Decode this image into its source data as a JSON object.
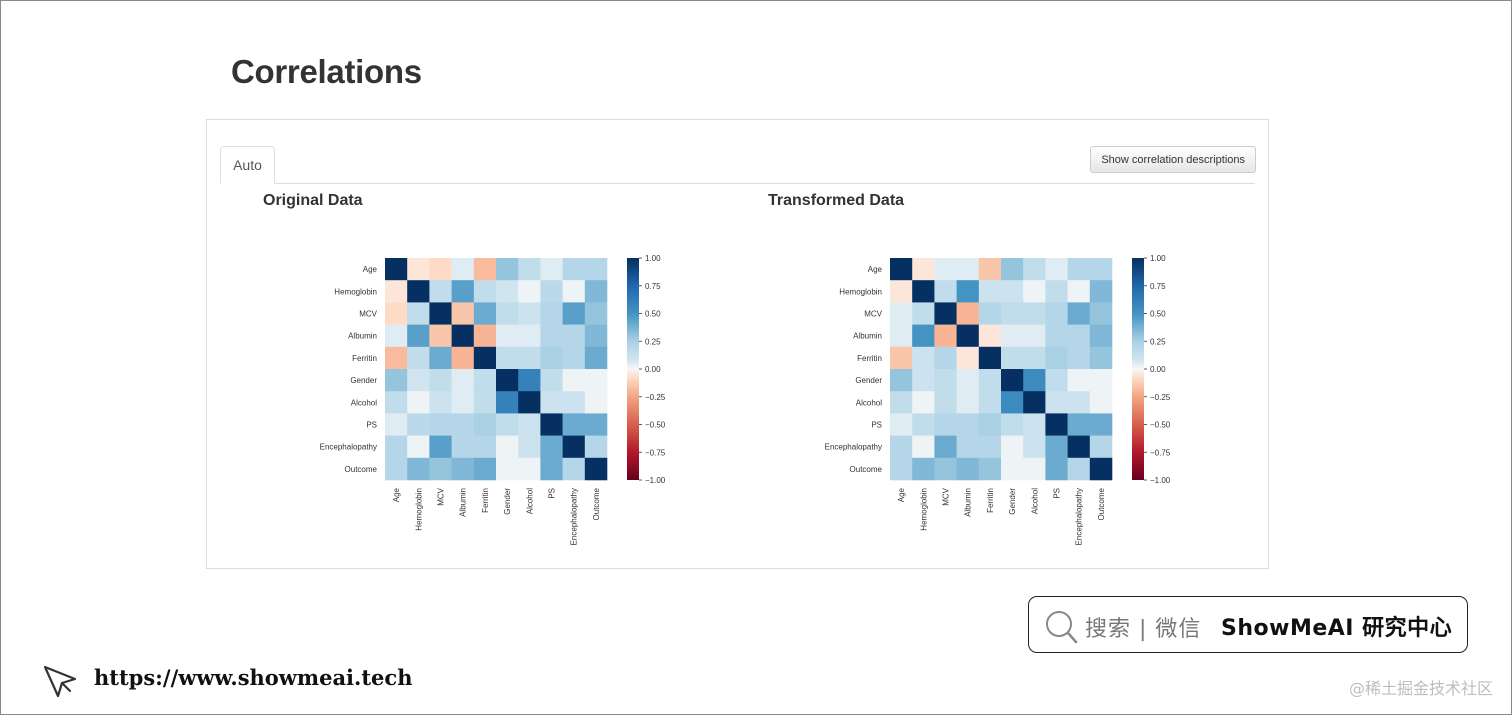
{
  "page": {
    "title": "Correlations"
  },
  "tabs": [
    {
      "label": "Auto",
      "active": true
    }
  ],
  "toolbar": {
    "show_descriptions_label": "Show correlation descriptions"
  },
  "footer": {
    "url": "https://www.showmeai.tech",
    "search_label": "搜索 | 微信",
    "brand": "ShowMeAI 研究中心",
    "watermark": "@稀土掘金技术社区"
  },
  "chart_data": [
    {
      "type": "heatmap",
      "title": "Original Data",
      "variables": [
        "Age",
        "Hemoglobin",
        "MCV",
        "Albumin",
        "Ferritin",
        "Gender",
        "Alcohol",
        "PS",
        "Encephalopathy",
        "Outcome"
      ],
      "vmin": -1,
      "vmax": 1,
      "colorbar_ticks": [
        "1.00",
        "0.75",
        "0.50",
        "0.25",
        "0.00",
        "−0.25",
        "−0.50",
        "−0.75",
        "−1.00"
      ],
      "matrix": [
        [
          1.0,
          -0.05,
          -0.08,
          0.05,
          -0.18,
          0.3,
          0.15,
          0.05,
          0.2,
          0.2
        ],
        [
          -0.05,
          1.0,
          0.15,
          0.45,
          0.15,
          0.08,
          0.02,
          0.18,
          0.02,
          0.35
        ],
        [
          -0.08,
          0.15,
          1.0,
          -0.15,
          0.4,
          0.15,
          0.1,
          0.2,
          0.45,
          0.3
        ],
        [
          0.05,
          0.45,
          -0.15,
          1.0,
          -0.2,
          0.05,
          0.05,
          0.2,
          0.2,
          0.35
        ],
        [
          -0.18,
          0.15,
          0.4,
          -0.2,
          1.0,
          0.15,
          0.15,
          0.25,
          0.2,
          0.4
        ],
        [
          0.3,
          0.08,
          0.15,
          0.05,
          0.15,
          1.0,
          0.6,
          0.15,
          0.02,
          0.02
        ],
        [
          0.15,
          0.02,
          0.1,
          0.05,
          0.15,
          0.6,
          1.0,
          0.1,
          0.1,
          0.02
        ],
        [
          0.05,
          0.18,
          0.2,
          0.2,
          0.25,
          0.15,
          0.1,
          1.0,
          0.4,
          0.4
        ],
        [
          0.2,
          0.02,
          0.45,
          0.2,
          0.2,
          0.02,
          0.1,
          0.4,
          1.0,
          0.2
        ],
        [
          0.2,
          0.35,
          0.3,
          0.35,
          0.4,
          0.02,
          0.02,
          0.4,
          0.2,
          1.0
        ]
      ]
    },
    {
      "type": "heatmap",
      "title": "Transformed Data",
      "variables": [
        "Age",
        "Hemoglobin",
        "MCV",
        "Albumin",
        "Ferritin",
        "Gender",
        "Alcohol",
        "PS",
        "Encephalopathy",
        "Outcome"
      ],
      "vmin": -1,
      "vmax": 1,
      "colorbar_ticks": [
        "1.00",
        "0.75",
        "0.50",
        "0.25",
        "0.00",
        "−0.25",
        "−0.50",
        "−0.75",
        "−1.00"
      ],
      "matrix": [
        [
          1.0,
          -0.05,
          0.05,
          0.05,
          -0.15,
          0.3,
          0.15,
          0.05,
          0.2,
          0.2
        ],
        [
          -0.05,
          1.0,
          0.15,
          0.5,
          0.1,
          0.1,
          0.02,
          0.15,
          0.02,
          0.35
        ],
        [
          0.05,
          0.15,
          1.0,
          -0.2,
          0.2,
          0.15,
          0.15,
          0.2,
          0.4,
          0.3
        ],
        [
          0.05,
          0.5,
          -0.2,
          1.0,
          -0.05,
          0.05,
          0.05,
          0.2,
          0.2,
          0.35
        ],
        [
          -0.15,
          0.1,
          0.2,
          -0.05,
          1.0,
          0.15,
          0.15,
          0.25,
          0.2,
          0.3
        ],
        [
          0.3,
          0.1,
          0.15,
          0.05,
          0.15,
          1.0,
          0.55,
          0.15,
          0.02,
          0.02
        ],
        [
          0.15,
          0.02,
          0.15,
          0.05,
          0.15,
          0.55,
          1.0,
          0.1,
          0.1,
          0.02
        ],
        [
          0.05,
          0.15,
          0.2,
          0.2,
          0.25,
          0.15,
          0.1,
          1.0,
          0.4,
          0.4
        ],
        [
          0.2,
          0.02,
          0.4,
          0.2,
          0.2,
          0.02,
          0.1,
          0.4,
          1.0,
          0.2
        ],
        [
          0.2,
          0.35,
          0.3,
          0.35,
          0.3,
          0.02,
          0.02,
          0.4,
          0.2,
          1.0
        ]
      ]
    }
  ]
}
